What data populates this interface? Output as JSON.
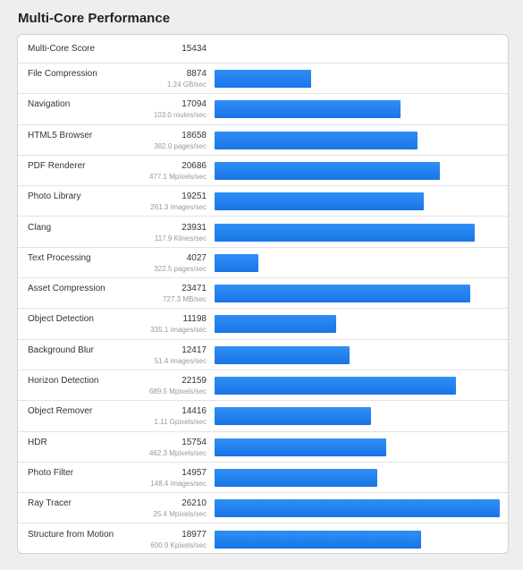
{
  "title": "Multi-Core Performance",
  "summary": {
    "label": "Multi-Core Score",
    "value": "15434"
  },
  "colors": {
    "bar": "#1f7ff0",
    "background": "#eeeeee",
    "card": "#ffffff"
  },
  "chart_data": {
    "type": "bar",
    "orientation": "horizontal",
    "categories": [
      "File Compression",
      "Navigation",
      "HTML5 Browser",
      "PDF Renderer",
      "Photo Library",
      "Clang",
      "Text Processing",
      "Asset Compression",
      "Object Detection",
      "Background Blur",
      "Horizon Detection",
      "Object Remover",
      "HDR",
      "Photo Filter",
      "Ray Tracer",
      "Structure from Motion"
    ],
    "values": [
      8874,
      17094,
      18658,
      20686,
      19251,
      23931,
      4027,
      23471,
      11198,
      12417,
      22159,
      14416,
      15754,
      14957,
      26210,
      18977
    ],
    "rates": [
      "1.24 GB/sec",
      "103.0 routes/sec",
      "382.0 pages/sec",
      "477.1 Mpixels/sec",
      "261.3 images/sec",
      "117.9 Klines/sec",
      "322.5 pages/sec",
      "727.3 MB/sec",
      "335.1 images/sec",
      "51.4 images/sec",
      "689.5 Mpixels/sec",
      "1.11 Gpixels/sec",
      "462.3 Mpixels/sec",
      "148.4 images/sec",
      "25.4 Mpixels/sec",
      "600.9 Kpixels/sec"
    ],
    "xlim": [
      0,
      26210
    ],
    "grid": false,
    "legend": "none"
  }
}
